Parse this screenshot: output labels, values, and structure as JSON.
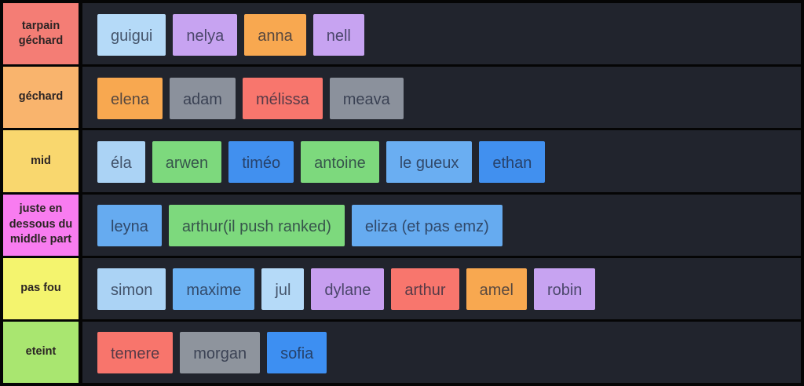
{
  "board": {
    "row_background": "#21242d",
    "frame_color": "#050505"
  },
  "tiers": [
    {
      "label": "tarpain géchard",
      "color": "#f47d75",
      "items": [
        {
          "name": "guigui",
          "color": "#b5daf8"
        },
        {
          "name": "nelya",
          "color": "#c7a3f1"
        },
        {
          "name": "anna",
          "color": "#f8a850"
        },
        {
          "name": "nell",
          "color": "#c7a3f1"
        }
      ]
    },
    {
      "label": "géchard",
      "color": "#f9b46d",
      "items": [
        {
          "name": "elena",
          "color": "#f8a850"
        },
        {
          "name": "adam",
          "color": "#8b919c"
        },
        {
          "name": "mélissa",
          "color": "#f8766d"
        },
        {
          "name": "meava",
          "color": "#8b919c"
        }
      ]
    },
    {
      "label": "mid",
      "color": "#f9d76e",
      "items": [
        {
          "name": "éla",
          "color": "#abd3f5"
        },
        {
          "name": "arwen",
          "color": "#7dd97d"
        },
        {
          "name": "timéo",
          "color": "#4190ef"
        },
        {
          "name": "antoine",
          "color": "#7dd97d"
        },
        {
          "name": "le gueux",
          "color": "#6aaef2"
        },
        {
          "name": "ethan",
          "color": "#4190ef"
        }
      ]
    },
    {
      "label": "juste en dessous du middle part",
      "color": "#f87cf0",
      "items": [
        {
          "name": "leyna",
          "color": "#66abf0"
        },
        {
          "name": "arthur(il push ranked)",
          "color": "#7dd97d"
        },
        {
          "name": "eliza (et pas emz)",
          "color": "#66abf0"
        }
      ]
    },
    {
      "label": "pas fou",
      "color": "#f4f46e",
      "items": [
        {
          "name": "simon",
          "color": "#abd3f5"
        },
        {
          "name": "maxime",
          "color": "#6cb2f3"
        },
        {
          "name": "jul",
          "color": "#b5daf8"
        },
        {
          "name": "dylane",
          "color": "#c79ff0"
        },
        {
          "name": "arthur",
          "color": "#f8766d"
        },
        {
          "name": "amel",
          "color": "#f8a850"
        },
        {
          "name": "robin",
          "color": "#c7a3f1"
        }
      ]
    },
    {
      "label": "eteint",
      "color": "#a9e670",
      "items": [
        {
          "name": "temere",
          "color": "#f8756c"
        },
        {
          "name": "morgan",
          "color": "#8e949d"
        },
        {
          "name": "sofia",
          "color": "#3d8ff2"
        }
      ]
    }
  ]
}
